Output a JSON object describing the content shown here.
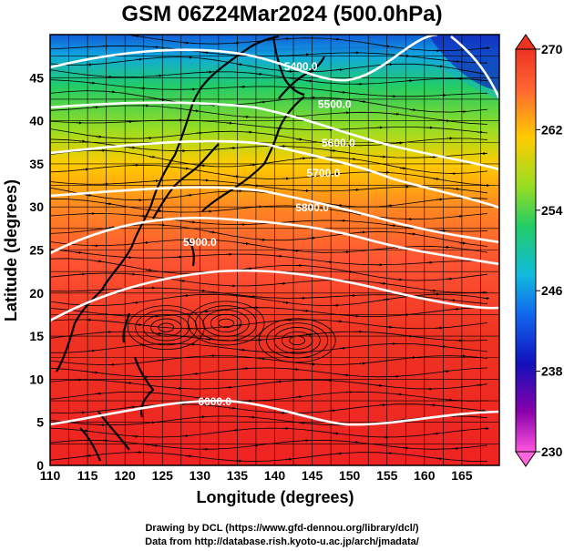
{
  "title": "GSM 06Z24Mar2024 (500.0hPa)",
  "map": {
    "xlabel": "Longitude (degrees)",
    "ylabel": "Latitude (degrees)",
    "x_ticks": [
      "110",
      "115",
      "120",
      "125",
      "130",
      "135",
      "140",
      "145",
      "150",
      "155",
      "160",
      "165"
    ],
    "y_ticks": [
      "0",
      "5",
      "10",
      "15",
      "20",
      "25",
      "30",
      "35",
      "40",
      "45"
    ],
    "lon_range": [
      110,
      170
    ],
    "lat_range": [
      0,
      50
    ],
    "contour_labels": [
      {
        "text": "5400.0",
        "lon": 143.5,
        "lat": 45.9
      },
      {
        "text": "5500.0",
        "lon": 148,
        "lat": 41.5
      },
      {
        "text": "5600.0",
        "lon": 148.5,
        "lat": 37
      },
      {
        "text": "5700.0",
        "lon": 146.5,
        "lat": 33.5
      },
      {
        "text": "5800.0",
        "lon": 145,
        "lat": 29.5
      },
      {
        "text": "5900.0",
        "lon": 130,
        "lat": 25.5
      },
      {
        "text": "6000.0",
        "lon": 132,
        "lat": 7
      }
    ],
    "colorbar": {
      "ticks": [
        "270",
        "262",
        "254",
        "246",
        "238",
        "230"
      ],
      "range": [
        230,
        270
      ],
      "colors": [
        "#ee3322",
        "#ff6633",
        "#ff9900",
        "#ffcc00",
        "#bbdd22",
        "#44cc22",
        "#22cc88",
        "#11bbdd",
        "#1188ee",
        "#1144dd",
        "#1111bb",
        "#660099",
        "#cc00aa",
        "#ff66dd"
      ]
    }
  },
  "credits": {
    "line1": "Drawing by DCL (https://www.gfd-dennou.org/library/dcl/)",
    "line2": "Data from http://database.rish.kyoto-u.ac.jp/arch/jmadata/"
  }
}
